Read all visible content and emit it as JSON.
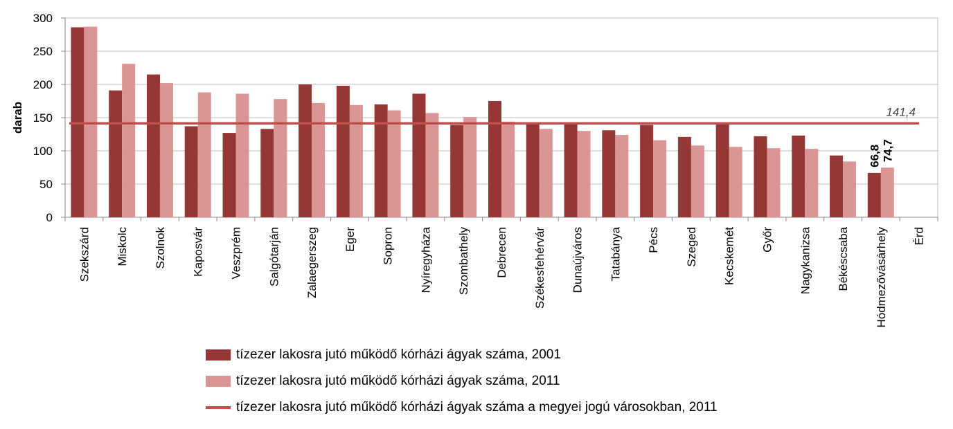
{
  "chart_data": {
    "type": "bar",
    "ylabel": "darab",
    "ylim": [
      0,
      300
    ],
    "yticks": [
      0,
      50,
      100,
      150,
      200,
      250,
      300
    ],
    "categories": [
      "Szekszárd",
      "Miskolc",
      "Szolnok",
      "Kaposvár",
      "Veszprém",
      "Salgótarján",
      "Zalaegerszeg",
      "Eger",
      "Sopron",
      "Nyíregyháza",
      "Szombathely",
      "Debrecen",
      "Székesfehérvár",
      "Dunaújváros",
      "Tatabánya",
      "Pécs",
      "Szeged",
      "Kecskemét",
      "Győr",
      "Nagykanizsa",
      "Békéscsaba",
      "Hódmezővásárhely",
      "Érd"
    ],
    "series": [
      {
        "name": "tízezer lakosra jutó működő kórházi ágyak száma, 2001",
        "color": "#953735",
        "values": [
          286,
          191,
          215,
          137,
          127,
          133,
          200,
          198,
          170,
          186,
          139,
          175,
          143,
          143,
          131,
          139,
          121,
          142,
          122,
          123,
          93,
          66.8,
          null
        ]
      },
      {
        "name": "tízezer lakosra jutó működő kórházi ágyak száma, 2011",
        "color": "#d99694",
        "values": [
          287,
          231,
          202,
          188,
          186,
          178,
          172,
          169,
          161,
          157,
          151,
          144,
          133,
          130,
          124,
          116,
          108,
          106,
          104,
          103,
          84,
          74.7,
          null
        ]
      }
    ],
    "reference_line": {
      "name": "tízezer lakosra jutó működő kórházi ágyak száma a megyei jogú városokban, 2011",
      "value": 141.4,
      "label": "141,4",
      "color": "#c0504d"
    },
    "data_labels": [
      {
        "category": "Hódmezővásárhely",
        "series": 0,
        "text": "66,8"
      },
      {
        "category": "Hódmezővásárhely",
        "series": 1,
        "text": "74,7"
      }
    ],
    "grid": true,
    "legend_position": "bottom"
  }
}
